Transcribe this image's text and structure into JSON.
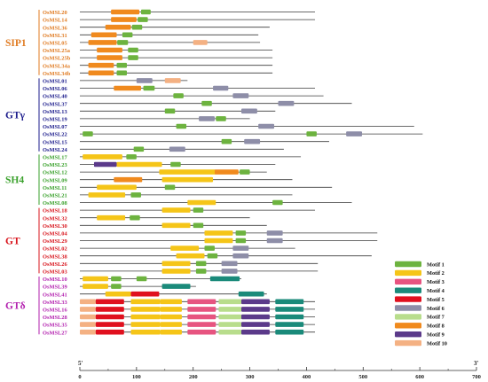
{
  "axis": {
    "start_label": "5'",
    "end_label": "3'",
    "ticks": [
      "0",
      "100",
      "200",
      "300",
      "400",
      "500",
      "600",
      "700"
    ]
  },
  "colors": {
    "SIP1": "#e07b22",
    "GTgamma": "#1c1c8c",
    "SH4": "#3aa12c",
    "GT": "#d8141c",
    "GTdelta": "#b21fae"
  },
  "motifs": [
    {
      "name": "Motif 1",
      "color": "#6db33f"
    },
    {
      "name": "Motif 2",
      "color": "#f5c518"
    },
    {
      "name": "Motif 3",
      "color": "#e75480"
    },
    {
      "name": "Motif 4",
      "color": "#1a8a7a"
    },
    {
      "name": "Motif 5",
      "color": "#e0101e"
    },
    {
      "name": "Motif 6",
      "color": "#8e8ea8"
    },
    {
      "name": "Motif 7",
      "color": "#b8dd8c"
    },
    {
      "name": "Motif 8",
      "color": "#f08a1e"
    },
    {
      "name": "Motif 9",
      "color": "#5b3a8a"
    },
    {
      "name": "Motif 10",
      "color": "#f4b183"
    }
  ],
  "groups": [
    {
      "label": "SIP1",
      "color_key": "SIP1",
      "genes": [
        {
          "name": "OsMSL20",
          "length": 415,
          "motifs": [
            [
              8,
              55,
              105
            ],
            [
              1,
              108,
              125
            ]
          ]
        },
        {
          "name": "OsMSL14",
          "length": 415,
          "motifs": [
            [
              8,
              55,
              100
            ],
            [
              1,
              102,
              120
            ]
          ]
        },
        {
          "name": "OsMSL36",
          "length": 335,
          "motifs": [
            [
              8,
              45,
              90
            ],
            [
              1,
              92,
              110
            ]
          ]
        },
        {
          "name": "OsMSL31",
          "length": 315,
          "motifs": [
            [
              8,
              20,
              65
            ],
            [
              1,
              75,
              93
            ]
          ]
        },
        {
          "name": "OsMSL05",
          "length": 318,
          "motifs": [
            [
              8,
              15,
              65
            ],
            [
              1,
              66,
              85
            ],
            [
              10,
              200,
              225
            ]
          ]
        },
        {
          "name": "OsMSL25a",
          "length": 340,
          "motifs": [
            [
              8,
              30,
              75
            ],
            [
              1,
              85,
              103
            ]
          ]
        },
        {
          "name": "OsMSL25b",
          "length": 340,
          "motifs": [
            [
              8,
              30,
              75
            ],
            [
              1,
              85,
              103
            ]
          ]
        },
        {
          "name": "OsMSL34a",
          "length": 340,
          "motifs": [
            [
              8,
              15,
              60
            ],
            [
              1,
              65,
              83
            ]
          ]
        },
        {
          "name": "OsMSL34b",
          "length": 340,
          "motifs": [
            [
              8,
              15,
              60
            ],
            [
              1,
              65,
              83
            ]
          ]
        }
      ]
    },
    {
      "label": "GTγ",
      "color_key": "GTgamma",
      "genes": [
        {
          "name": "OsMSL01",
          "length": 190,
          "motifs": [
            [
              6,
              100,
              128
            ],
            [
              10,
              150,
              178
            ]
          ]
        },
        {
          "name": "OsMSL06",
          "length": 415,
          "motifs": [
            [
              8,
              60,
              108
            ],
            [
              1,
              112,
              132
            ],
            [
              6,
              235,
              262
            ]
          ]
        },
        {
          "name": "OsMSL40",
          "length": 430,
          "motifs": [
            [
              1,
              165,
              183
            ],
            [
              6,
              270,
              298
            ]
          ]
        },
        {
          "name": "OsMSL37",
          "length": 480,
          "motifs": [
            [
              1,
              215,
              233
            ],
            [
              6,
              350,
              378
            ]
          ]
        },
        {
          "name": "OsMSL13",
          "length": 345,
          "motifs": [
            [
              1,
              150,
              168
            ],
            [
              6,
              285,
              313
            ]
          ]
        },
        {
          "name": "OsMSL19",
          "length": 300,
          "motifs": [
            [
              6,
              210,
              238
            ],
            [
              1,
              240,
              258
            ]
          ]
        },
        {
          "name": "OsMSL07",
          "length": 590,
          "motifs": [
            [
              1,
              170,
              188
            ],
            [
              6,
              315,
              343
            ]
          ]
        },
        {
          "name": "OsMSL22",
          "length": 605,
          "motifs": [
            [
              1,
              5,
              23
            ],
            [
              1,
              400,
              418
            ],
            [
              6,
              470,
              498
            ]
          ]
        },
        {
          "name": "OsMSL15",
          "length": 440,
          "motifs": [
            [
              1,
              250,
              268
            ],
            [
              6,
              290,
              318
            ]
          ]
        },
        {
          "name": "OsMSL24",
          "length": 360,
          "motifs": [
            [
              1,
              95,
              113
            ],
            [
              6,
              158,
              186
            ]
          ]
        }
      ]
    },
    {
      "label": "SH4",
      "color_key": "SH4",
      "genes": [
        {
          "name": "OsMSL17",
          "length": 390,
          "motifs": [
            [
              2,
              5,
              75
            ],
            [
              1,
              82,
              100
            ]
          ]
        },
        {
          "name": "OsMSL23",
          "length": 345,
          "motifs": [
            [
              9,
              25,
              65
            ],
            [
              2,
              65,
              145
            ],
            [
              1,
              160,
              178
            ]
          ]
        },
        {
          "name": "OsMSL12",
          "length": 330,
          "motifs": [
            [
              2,
              140,
              240
            ],
            [
              8,
              238,
              280
            ],
            [
              1,
              282,
              300
            ]
          ]
        },
        {
          "name": "OsMSL09",
          "length": 375,
          "motifs": [
            [
              8,
              60,
              110
            ],
            [
              2,
              145,
              235
            ]
          ]
        },
        {
          "name": "OsMSL11",
          "length": 445,
          "motifs": [
            [
              2,
              30,
              100
            ],
            [
              1,
              150,
              168
            ]
          ]
        },
        {
          "name": "OsMSL21",
          "length": 375,
          "motifs": [
            [
              2,
              15,
              80
            ],
            [
              1,
              90,
              108
            ]
          ]
        },
        {
          "name": "OsMSL08",
          "length": 480,
          "motifs": [
            [
              2,
              190,
              240
            ],
            [
              1,
              340,
              358
            ]
          ]
        }
      ]
    },
    {
      "label": "GT",
      "color_key": "GT",
      "genes": [
        {
          "name": "OsMSL18",
          "length": 415,
          "motifs": [
            [
              2,
              145,
              195
            ],
            [
              1,
              200,
              218
            ]
          ]
        },
        {
          "name": "OsMSL32",
          "length": 300,
          "motifs": [
            [
              2,
              30,
              80
            ],
            [
              1,
              88,
              106
            ]
          ]
        },
        {
          "name": "OsMSL30",
          "length": 330,
          "motifs": [
            [
              2,
              145,
              195
            ],
            [
              1,
              200,
              218
            ]
          ]
        },
        {
          "name": "OsMSL04",
          "length": 525,
          "motifs": [
            [
              2,
              220,
              270
            ],
            [
              1,
              275,
              293
            ],
            [
              6,
              330,
              358
            ]
          ]
        },
        {
          "name": "OsMSL29",
          "length": 525,
          "motifs": [
            [
              2,
              220,
              270
            ],
            [
              1,
              275,
              293
            ],
            [
              6,
              330,
              358
            ]
          ]
        },
        {
          "name": "OsMSL02",
          "length": 380,
          "motifs": [
            [
              2,
              160,
              210
            ],
            [
              1,
              220,
              238
            ],
            [
              6,
              270,
              298
            ]
          ]
        },
        {
          "name": "OsMSL38",
          "length": 515,
          "motifs": [
            [
              2,
              170,
              220
            ],
            [
              1,
              225,
              243
            ],
            [
              6,
              270,
              298
            ]
          ]
        },
        {
          "name": "OsMSL26",
          "length": 420,
          "motifs": [
            [
              2,
              145,
              195
            ],
            [
              1,
              205,
              223
            ],
            [
              6,
              250,
              278
            ]
          ]
        },
        {
          "name": "OsMSL03",
          "length": 420,
          "motifs": [
            [
              2,
              145,
              195
            ],
            [
              1,
              205,
              223
            ],
            [
              6,
              250,
              278
            ]
          ]
        }
      ]
    },
    {
      "label": "GTδ",
      "color_key": "GTdelta",
      "genes": [
        {
          "name": "OsMSL10",
          "length": 285,
          "motifs": [
            [
              2,
              5,
              50
            ],
            [
              1,
              55,
              73
            ],
            [
              1,
              100,
              118
            ],
            [
              4,
              230,
              282
            ]
          ]
        },
        {
          "name": "OsMSL39",
          "length": 205,
          "motifs": [
            [
              2,
              5,
              50
            ],
            [
              1,
              55,
              73
            ],
            [
              4,
              145,
              195
            ]
          ]
        },
        {
          "name": "OsMSL41",
          "length": 330,
          "motifs": [
            [
              2,
              45,
              90
            ],
            [
              5,
              90,
              140
            ],
            [
              4,
              280,
              325
            ]
          ]
        },
        {
          "name": "OsMSL33",
          "length": 415,
          "motifs": [
            [
              10,
              0,
              28
            ],
            [
              5,
              28,
              78
            ],
            [
              2,
              90,
              142
            ],
            [
              2,
              142,
              180
            ],
            [
              3,
              190,
              240
            ],
            [
              7,
              245,
              285
            ],
            [
              9,
              285,
              335
            ],
            [
              4,
              345,
              395
            ]
          ]
        },
        {
          "name": "OsMSL16",
          "length": 415,
          "motifs": [
            [
              10,
              0,
              28
            ],
            [
              5,
              28,
              78
            ],
            [
              2,
              90,
              142
            ],
            [
              2,
              142,
              180
            ],
            [
              3,
              190,
              240
            ],
            [
              7,
              245,
              285
            ],
            [
              9,
              285,
              335
            ],
            [
              4,
              345,
              395
            ]
          ]
        },
        {
          "name": "OsMSL28",
          "length": 415,
          "motifs": [
            [
              10,
              0,
              28
            ],
            [
              5,
              28,
              78
            ],
            [
              2,
              90,
              142
            ],
            [
              2,
              142,
              180
            ],
            [
              3,
              190,
              240
            ],
            [
              7,
              245,
              285
            ],
            [
              9,
              285,
              335
            ],
            [
              4,
              345,
              395
            ]
          ]
        },
        {
          "name": "OsMSL35",
          "length": 415,
          "motifs": [
            [
              10,
              0,
              28
            ],
            [
              5,
              28,
              78
            ],
            [
              2,
              90,
              142
            ],
            [
              2,
              142,
              180
            ],
            [
              3,
              190,
              240
            ],
            [
              7,
              245,
              285
            ],
            [
              9,
              285,
              335
            ],
            [
              4,
              345,
              395
            ]
          ]
        },
        {
          "name": "OsMSL27",
          "length": 415,
          "motifs": [
            [
              10,
              0,
              28
            ],
            [
              5,
              28,
              78
            ],
            [
              2,
              90,
              142
            ],
            [
              2,
              142,
              180
            ],
            [
              3,
              190,
              240
            ],
            [
              7,
              245,
              285
            ],
            [
              9,
              285,
              335
            ],
            [
              4,
              345,
              395
            ]
          ]
        }
      ]
    }
  ]
}
